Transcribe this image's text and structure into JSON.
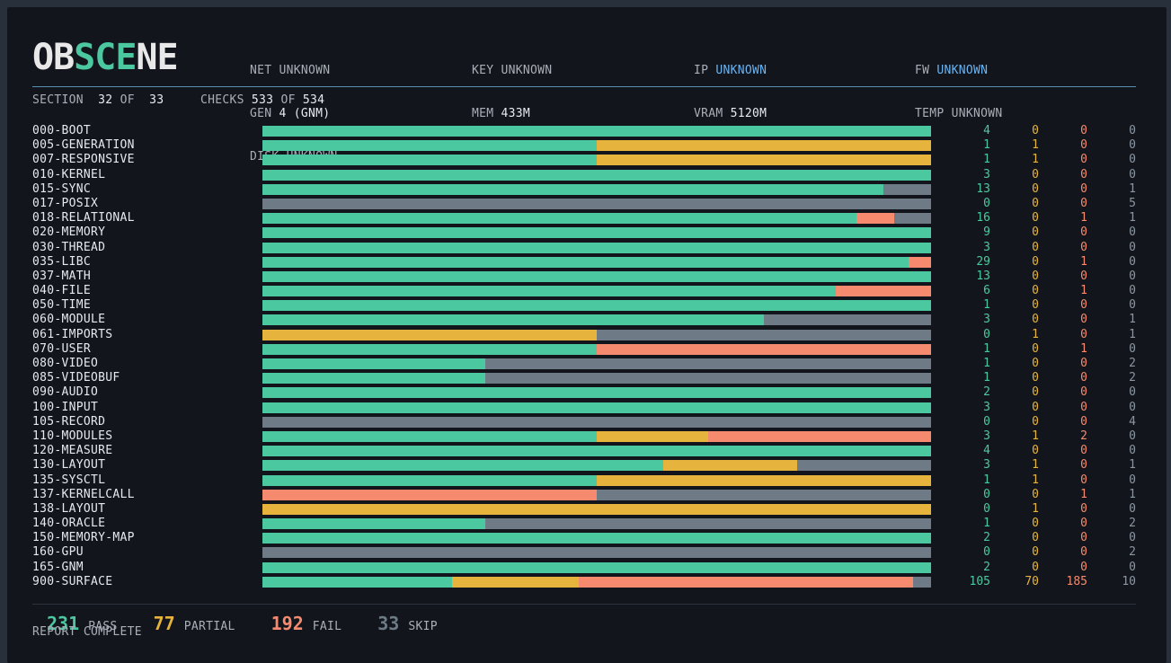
{
  "logo": {
    "parts": [
      {
        "text": "OB",
        "color": "white"
      },
      {
        "text": "SCE",
        "color": "green"
      },
      {
        "text": "NE",
        "color": "white"
      }
    ]
  },
  "header": {
    "col1": [
      {
        "label": "NET",
        "value": "UNKNOWN"
      },
      {
        "label": "GEN",
        "value": "4 (GNM)"
      },
      {
        "label": "DISK",
        "value": "UNKNOWN"
      }
    ],
    "col2": [
      {
        "label": "KEY",
        "value": "UNKNOWN"
      },
      {
        "label": "MEM",
        "value": "433M"
      }
    ],
    "col3": [
      {
        "label": "IP",
        "value": "UNKNOWN",
        "highlight": true
      },
      {
        "label": "VRAM",
        "value": "5120M"
      }
    ],
    "col4": [
      {
        "label": "FW",
        "value": "UNKNOWN",
        "highlight": true
      },
      {
        "label": "TEMP",
        "value": "UNKNOWN"
      }
    ]
  },
  "progress": {
    "section_label": "SECTION",
    "section_current": "32",
    "of": "OF",
    "section_total": "33",
    "checks_label": "CHECKS",
    "checks_current": "533",
    "checks_total": "534"
  },
  "colors": {
    "pass": "#4cc8a0",
    "partial": "#e6b43c",
    "fail": "#f58a6e",
    "skip": "#6e7b86",
    "accent_blue": "#6ab4f2"
  },
  "rows": [
    {
      "name": "000-BOOT",
      "pass": 4,
      "partial": 0,
      "fail": 0,
      "skip": 0
    },
    {
      "name": "005-GENERATION",
      "pass": 1,
      "partial": 1,
      "fail": 0,
      "skip": 0
    },
    {
      "name": "007-RESPONSIVE",
      "pass": 1,
      "partial": 1,
      "fail": 0,
      "skip": 0
    },
    {
      "name": "010-KERNEL",
      "pass": 3,
      "partial": 0,
      "fail": 0,
      "skip": 0
    },
    {
      "name": "015-SYNC",
      "pass": 13,
      "partial": 0,
      "fail": 0,
      "skip": 1
    },
    {
      "name": "017-POSIX",
      "pass": 0,
      "partial": 0,
      "fail": 0,
      "skip": 5
    },
    {
      "name": "018-RELATIONAL",
      "pass": 16,
      "partial": 0,
      "fail": 1,
      "skip": 1
    },
    {
      "name": "020-MEMORY",
      "pass": 9,
      "partial": 0,
      "fail": 0,
      "skip": 0
    },
    {
      "name": "030-THREAD",
      "pass": 3,
      "partial": 0,
      "fail": 0,
      "skip": 0
    },
    {
      "name": "035-LIBC",
      "pass": 29,
      "partial": 0,
      "fail": 1,
      "skip": 0
    },
    {
      "name": "037-MATH",
      "pass": 13,
      "partial": 0,
      "fail": 0,
      "skip": 0
    },
    {
      "name": "040-FILE",
      "pass": 6,
      "partial": 0,
      "fail": 1,
      "skip": 0
    },
    {
      "name": "050-TIME",
      "pass": 1,
      "partial": 0,
      "fail": 0,
      "skip": 0
    },
    {
      "name": "060-MODULE",
      "pass": 3,
      "partial": 0,
      "fail": 0,
      "skip": 1
    },
    {
      "name": "061-IMPORTS",
      "pass": 0,
      "partial": 1,
      "fail": 0,
      "skip": 1
    },
    {
      "name": "070-USER",
      "pass": 1,
      "partial": 0,
      "fail": 1,
      "skip": 0
    },
    {
      "name": "080-VIDEO",
      "pass": 1,
      "partial": 0,
      "fail": 0,
      "skip": 2
    },
    {
      "name": "085-VIDEOBUF",
      "pass": 1,
      "partial": 0,
      "fail": 0,
      "skip": 2
    },
    {
      "name": "090-AUDIO",
      "pass": 2,
      "partial": 0,
      "fail": 0,
      "skip": 0
    },
    {
      "name": "100-INPUT",
      "pass": 3,
      "partial": 0,
      "fail": 0,
      "skip": 0
    },
    {
      "name": "105-RECORD",
      "pass": 0,
      "partial": 0,
      "fail": 0,
      "skip": 4
    },
    {
      "name": "110-MODULES",
      "pass": 3,
      "partial": 1,
      "fail": 2,
      "skip": 0
    },
    {
      "name": "120-MEASURE",
      "pass": 4,
      "partial": 0,
      "fail": 0,
      "skip": 0
    },
    {
      "name": "130-LAYOUT",
      "pass": 3,
      "partial": 1,
      "fail": 0,
      "skip": 1
    },
    {
      "name": "135-SYSCTL",
      "pass": 1,
      "partial": 1,
      "fail": 0,
      "skip": 0
    },
    {
      "name": "137-KERNELCALL",
      "pass": 0,
      "partial": 0,
      "fail": 1,
      "skip": 1
    },
    {
      "name": "138-LAYOUT",
      "pass": 0,
      "partial": 1,
      "fail": 0,
      "skip": 0
    },
    {
      "name": "140-ORACLE",
      "pass": 1,
      "partial": 0,
      "fail": 0,
      "skip": 2
    },
    {
      "name": "150-MEMORY-MAP",
      "pass": 2,
      "partial": 0,
      "fail": 0,
      "skip": 0
    },
    {
      "name": "160-GPU",
      "pass": 0,
      "partial": 0,
      "fail": 0,
      "skip": 2
    },
    {
      "name": "165-GNM",
      "pass": 2,
      "partial": 0,
      "fail": 0,
      "skip": 0
    },
    {
      "name": "900-SURFACE",
      "pass": 105,
      "partial": 70,
      "fail": 185,
      "skip": 10
    }
  ],
  "summary": {
    "pass_count": "231",
    "pass_label": "PASS",
    "partial_count": "77",
    "partial_label": "PARTIAL",
    "fail_count": "192",
    "fail_label": "FAIL",
    "skip_count": "33",
    "skip_label": "SKIP"
  },
  "status": "REPORT COMPLETE"
}
